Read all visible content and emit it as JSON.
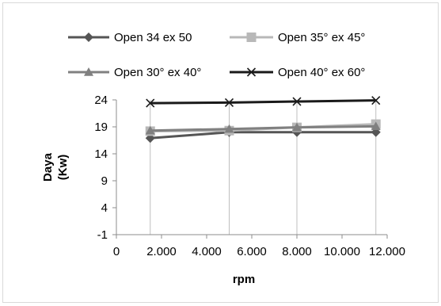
{
  "chart_data": {
    "type": "line",
    "title": "",
    "xlabel": "rpm",
    "ylabel": [
      "Daya",
      "(Kw)"
    ],
    "x": [
      1500,
      5000,
      8000,
      11500
    ],
    "xlim": [
      0,
      12000
    ],
    "ylim": [
      -1,
      24
    ],
    "x_ticks": [
      0,
      2000,
      4000,
      6000,
      8000,
      10000,
      12000
    ],
    "x_tick_labels": [
      "0",
      "2.000",
      "4.000",
      "6.000",
      "8.000",
      "10.000",
      "12.000"
    ],
    "y_ticks": [
      -1,
      4,
      9,
      14,
      19,
      24
    ],
    "y_tick_labels": [
      "-1",
      "4",
      "9",
      "14",
      "19",
      "24"
    ],
    "grid": "vertical",
    "legend_position": "top",
    "series": [
      {
        "name": "Open 34 ex 50",
        "values": [
          16.9,
          18.0,
          18.0,
          18.0
        ],
        "color": "#555555",
        "marker": "diamond"
      },
      {
        "name": "Open 35° ex 45°",
        "values": [
          18.2,
          18.3,
          18.9,
          19.5
        ],
        "color": "#b8b8b8",
        "marker": "square"
      },
      {
        "name": "Open 30° ex 40°",
        "values": [
          18.3,
          18.6,
          18.9,
          19.1
        ],
        "color": "#808080",
        "marker": "triangle"
      },
      {
        "name": "Open 40° ex 60°",
        "values": [
          23.4,
          23.5,
          23.7,
          23.9
        ],
        "color": "#1a1a1a",
        "marker": "x"
      }
    ]
  }
}
